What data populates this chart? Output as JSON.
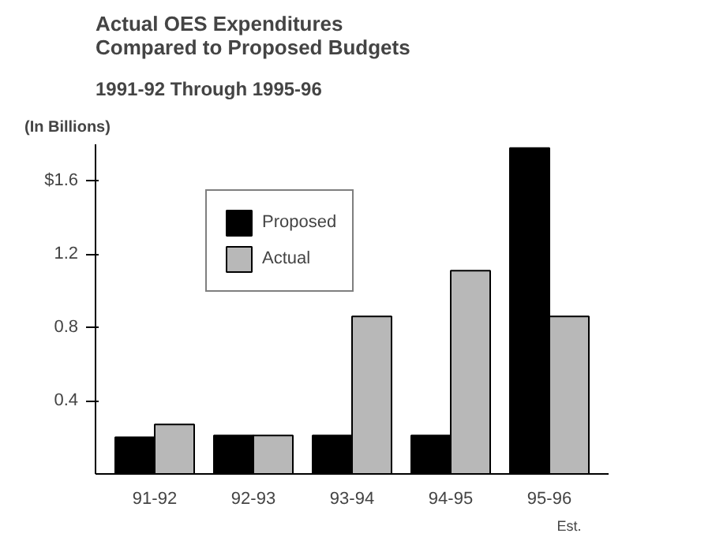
{
  "chart_data": {
    "type": "bar",
    "title": "Actual OES Expenditures\nCompared to Proposed Budgets",
    "subtitle": "1991-92 Through 1995-96",
    "ylabel": "(In Billions)",
    "categories": [
      "91-92",
      "92-93",
      "93-94",
      "94-95",
      "95-96"
    ],
    "series": [
      {
        "name": "Proposed",
        "color": "#000000",
        "values": [
          0.2,
          0.21,
          0.21,
          0.21,
          1.78
        ]
      },
      {
        "name": "Actual",
        "color": "#b8b8b8",
        "values": [
          0.27,
          0.21,
          0.86,
          1.11,
          0.86
        ]
      }
    ],
    "ylim": [
      0,
      1.8
    ],
    "yticks": [
      0.4,
      0.8,
      1.2,
      {
        "value": 1.6,
        "label": "$1.6"
      }
    ],
    "annotations": [
      "Est."
    ],
    "grid": false,
    "legend": "top left"
  }
}
